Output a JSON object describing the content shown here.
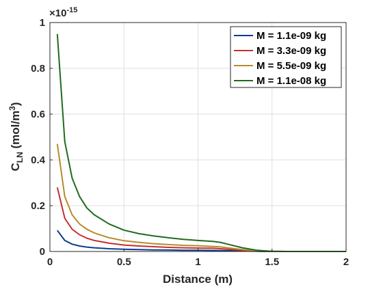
{
  "chart_data": {
    "type": "line",
    "title": "",
    "xlabel": "Distance (m)",
    "ylabel": {
      "main": "C",
      "sub": "LN",
      "units_prefix": " (mol/m",
      "units_sup": "3",
      "units_suffix": ")"
    },
    "y_exponent_label": {
      "base": "×10",
      "exp": "-15"
    },
    "xlim": [
      0,
      2
    ],
    "ylim": [
      0,
      1
    ],
    "xticks": [
      0,
      0.5,
      1,
      1.5,
      2
    ],
    "xtick_labels": [
      "0",
      "0.5",
      "1",
      "1.5",
      "2"
    ],
    "yticks": [
      0,
      0.2,
      0.4,
      0.6,
      0.8,
      1
    ],
    "ytick_labels": [
      "0",
      "0.2",
      "0.4",
      "0.6",
      "0.8",
      "1"
    ],
    "y_scale_factor": "1e-15",
    "grid": true,
    "legend_position": "top-right",
    "x": [
      0.05,
      0.1,
      0.15,
      0.2,
      0.25,
      0.3,
      0.4,
      0.5,
      0.6,
      0.7,
      0.8,
      0.9,
      1.0,
      1.1,
      1.15,
      1.2,
      1.3,
      1.4,
      1.5,
      1.6,
      1.8,
      2.0
    ],
    "series": [
      {
        "name": "M = 1.1e-09 kg",
        "color": "#0b3c8c",
        "values": [
          0.092,
          0.048,
          0.032,
          0.024,
          0.019,
          0.016,
          0.012,
          0.0095,
          0.008,
          0.007,
          0.0062,
          0.0055,
          0.005,
          0.0045,
          0.004,
          0.0032,
          0.0018,
          0.0006,
          0.0001,
          0,
          0,
          0
        ]
      },
      {
        "name": "M = 3.3e-09 kg",
        "color": "#c2302f",
        "values": [
          0.28,
          0.145,
          0.097,
          0.073,
          0.058,
          0.048,
          0.036,
          0.028,
          0.024,
          0.021,
          0.018,
          0.016,
          0.015,
          0.014,
          0.012,
          0.0095,
          0.005,
          0.0015,
          0.0003,
          0,
          0,
          0
        ]
      },
      {
        "name": "M = 5.5e-09 kg",
        "color": "#b88a2a",
        "values": [
          0.47,
          0.24,
          0.16,
          0.12,
          0.097,
          0.081,
          0.06,
          0.047,
          0.04,
          0.034,
          0.03,
          0.027,
          0.025,
          0.022,
          0.02,
          0.016,
          0.008,
          0.0025,
          0.0005,
          0,
          0,
          0
        ]
      },
      {
        "name": "M = 1.1e-08 kg",
        "color": "#1e6b1e",
        "values": [
          0.95,
          0.48,
          0.32,
          0.24,
          0.19,
          0.16,
          0.12,
          0.093,
          0.078,
          0.068,
          0.06,
          0.053,
          0.048,
          0.044,
          0.04,
          0.032,
          0.016,
          0.005,
          0.001,
          0,
          0,
          0
        ]
      }
    ]
  }
}
